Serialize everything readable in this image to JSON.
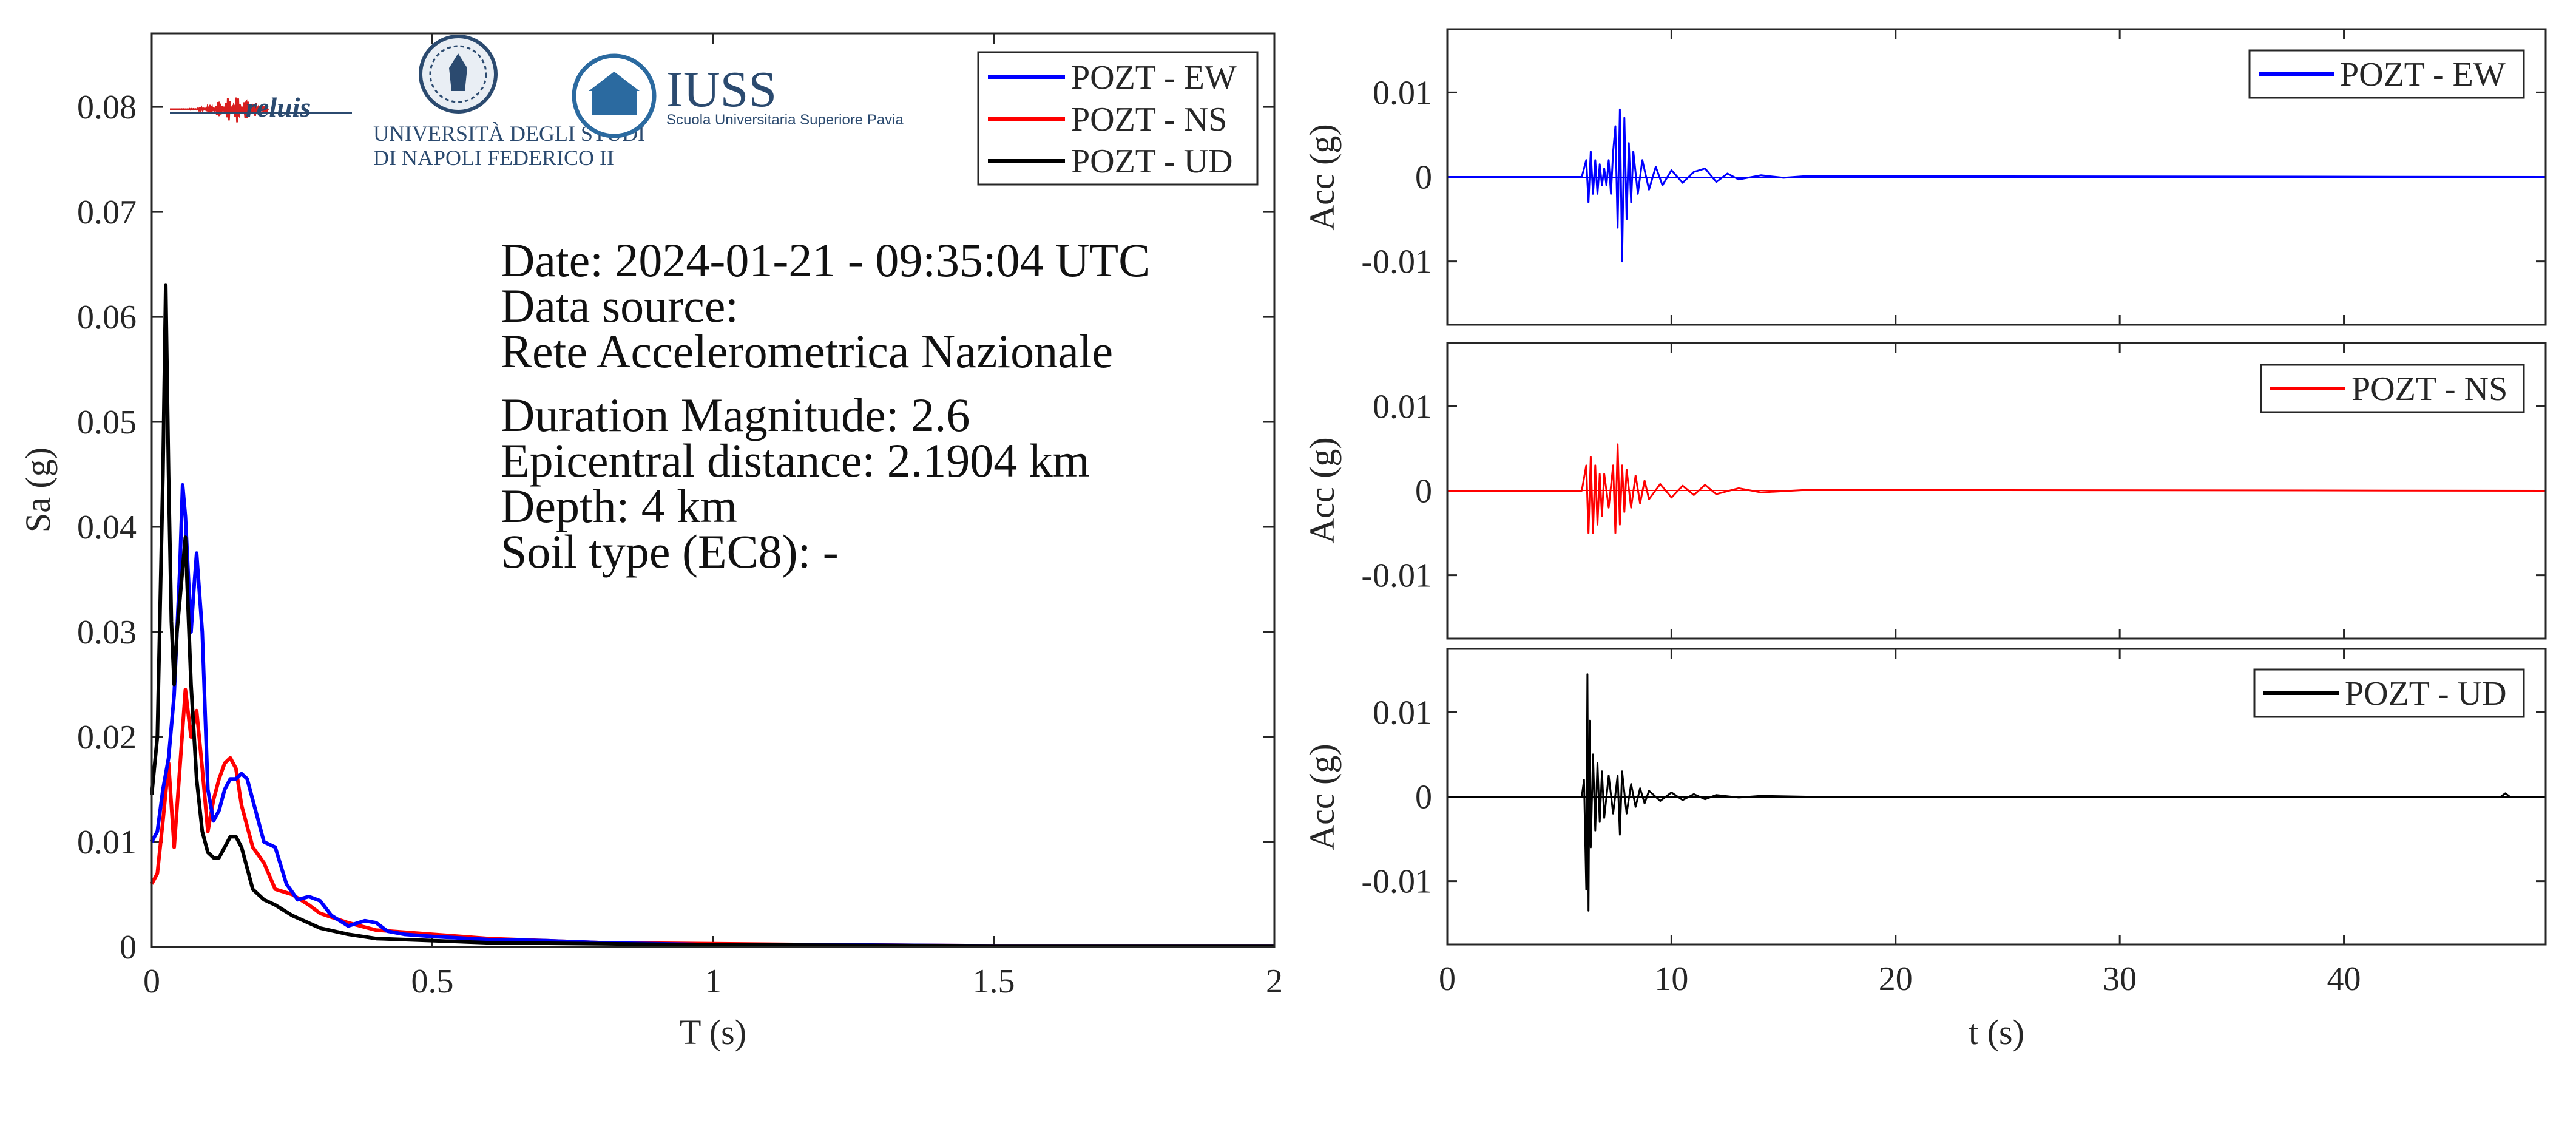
{
  "info": {
    "date": "Date: 2024-01-21 - 09:35:04 UTC",
    "source_label": "Data source:",
    "source": "Rete Accelerometrica Nazionale",
    "magnitude": "Duration Magnitude: 2.6",
    "distance": "Epicentral distance: 2.1904 km",
    "depth": "Depth: 4 km",
    "soil": "Soil type (EC8): -"
  },
  "logos": {
    "reluis": "reluis",
    "unina_line1": "UNIVERSITÀ DEGLI STUDI",
    "unina_line2": "DI NAPOLI FEDERICO II",
    "iuss_title": "IUSS",
    "iuss_subtitle": "Scuola Universitaria Superiore Pavia"
  },
  "colors": {
    "EW": "#0000ff",
    "NS": "#ff0000",
    "UD": "#000000"
  },
  "chart_data": [
    {
      "type": "line",
      "name": "spectrum",
      "xlabel": "T (s)",
      "ylabel": "Sa (g)",
      "xlim": [
        0,
        2
      ],
      "ylim": [
        0,
        0.087
      ],
      "xticks": [
        0,
        0.5,
        1,
        1.5,
        2
      ],
      "xtick_labels": [
        "0",
        "0.5",
        "1",
        "1.5",
        "2"
      ],
      "yticks": [
        0,
        0.01,
        0.02,
        0.03,
        0.04,
        0.05,
        0.06,
        0.07,
        0.08
      ],
      "ytick_labels": [
        "0",
        "0.01",
        "0.02",
        "0.03",
        "0.04",
        "0.05",
        "0.06",
        "0.07",
        "0.08"
      ],
      "legend": "top-right",
      "series": [
        {
          "name": "POZT - EW",
          "color": "#0000ff",
          "x": [
            0,
            0.01,
            0.02,
            0.03,
            0.04,
            0.05,
            0.055,
            0.06,
            0.07,
            0.075,
            0.08,
            0.09,
            0.1,
            0.11,
            0.12,
            0.13,
            0.14,
            0.15,
            0.16,
            0.17,
            0.18,
            0.2,
            0.22,
            0.24,
            0.26,
            0.28,
            0.3,
            0.32,
            0.35,
            0.38,
            0.4,
            0.42,
            0.45,
            0.5,
            0.6,
            0.7,
            0.8,
            1.0,
            1.2,
            1.5,
            1.8,
            2.0
          ],
          "y": [
            0.01,
            0.011,
            0.015,
            0.018,
            0.024,
            0.036,
            0.044,
            0.041,
            0.03,
            0.034,
            0.0375,
            0.03,
            0.015,
            0.012,
            0.013,
            0.015,
            0.016,
            0.016,
            0.0165,
            0.016,
            0.014,
            0.01,
            0.0095,
            0.006,
            0.0045,
            0.0048,
            0.0044,
            0.003,
            0.002,
            0.0025,
            0.0023,
            0.0015,
            0.0012,
            0.001,
            0.0007,
            0.0006,
            0.0004,
            0.0002,
            0.0002,
            0.0001,
            0.0001,
            0.0001
          ]
        },
        {
          "name": "POZT - NS",
          "color": "#ff0000",
          "x": [
            0,
            0.01,
            0.02,
            0.03,
            0.04,
            0.05,
            0.06,
            0.07,
            0.08,
            0.09,
            0.1,
            0.11,
            0.12,
            0.13,
            0.14,
            0.15,
            0.16,
            0.18,
            0.2,
            0.22,
            0.25,
            0.28,
            0.3,
            0.35,
            0.4,
            0.5,
            0.6,
            0.7,
            0.8,
            1.0,
            1.2,
            1.5,
            1.8,
            2.0
          ],
          "y": [
            0.006,
            0.007,
            0.012,
            0.0175,
            0.0095,
            0.017,
            0.0245,
            0.02,
            0.0225,
            0.017,
            0.011,
            0.014,
            0.016,
            0.0175,
            0.018,
            0.017,
            0.0135,
            0.0095,
            0.008,
            0.0055,
            0.005,
            0.004,
            0.0032,
            0.0023,
            0.0016,
            0.0012,
            0.0008,
            0.0006,
            0.0004,
            0.0003,
            0.0002,
            0.0001,
            0.0001,
            0.0001
          ]
        },
        {
          "name": "POZT - UD",
          "color": "#000000",
          "x": [
            0,
            0.01,
            0.02,
            0.025,
            0.03,
            0.035,
            0.04,
            0.045,
            0.05,
            0.06,
            0.07,
            0.08,
            0.09,
            0.1,
            0.11,
            0.12,
            0.13,
            0.14,
            0.15,
            0.16,
            0.17,
            0.18,
            0.2,
            0.22,
            0.25,
            0.3,
            0.35,
            0.4,
            0.5,
            0.6,
            0.8,
            1.0,
            1.5,
            2.0
          ],
          "y": [
            0.0145,
            0.02,
            0.045,
            0.063,
            0.045,
            0.031,
            0.025,
            0.03,
            0.033,
            0.039,
            0.025,
            0.016,
            0.011,
            0.009,
            0.0085,
            0.0085,
            0.0095,
            0.0105,
            0.0105,
            0.0095,
            0.0075,
            0.0055,
            0.0045,
            0.004,
            0.003,
            0.0018,
            0.0012,
            0.0008,
            0.0006,
            0.0004,
            0.0003,
            0.0002,
            0.0001,
            0.0001
          ]
        }
      ]
    },
    {
      "type": "line",
      "name": "acc-EW",
      "xlabel": "",
      "ylabel": "Acc (g)",
      "xlim": [
        0,
        49
      ],
      "ylim": [
        -0.0175,
        0.0175
      ],
      "yticks": [
        0.01,
        0,
        -0.01
      ],
      "ytick_labels": [
        "0.01",
        "0",
        "-0.01"
      ],
      "xticks": [
        0,
        10,
        20,
        30,
        40
      ],
      "legend": "top-right",
      "series": [
        {
          "name": "POZT - EW",
          "color": "#0000ff",
          "t": [
            0,
            6.0,
            6.2,
            6.3,
            6.4,
            6.5,
            6.6,
            6.7,
            6.8,
            6.9,
            7.0,
            7.1,
            7.2,
            7.3,
            7.4,
            7.5,
            7.6,
            7.7,
            7.8,
            7.9,
            8.0,
            8.1,
            8.2,
            8.3,
            8.5,
            8.7,
            9.0,
            9.3,
            9.6,
            10.0,
            10.5,
            11.0,
            11.5,
            12.0,
            12.5,
            13.0,
            14.0,
            15.0,
            16.0,
            49.0
          ],
          "y": [
            0,
            0,
            0.002,
            -0.003,
            0.003,
            -0.002,
            0.002,
            -0.002,
            0.0015,
            -0.001,
            0.001,
            -0.001,
            0.002,
            -0.002,
            0.003,
            0.006,
            -0.006,
            0.008,
            -0.01,
            0.007,
            -0.005,
            0.004,
            -0.003,
            0.003,
            -0.002,
            0.002,
            -0.0015,
            0.0012,
            -0.001,
            0.0008,
            -0.0007,
            0.0006,
            0.001,
            -0.0006,
            0.0004,
            -0.0003,
            0.0002,
            -0.0001,
            0.0001,
            0
          ]
        }
      ]
    },
    {
      "type": "line",
      "name": "acc-NS",
      "xlabel": "",
      "ylabel": "Acc (g)",
      "xlim": [
        0,
        49
      ],
      "ylim": [
        -0.0175,
        0.0175
      ],
      "yticks": [
        0.01,
        0,
        -0.01
      ],
      "ytick_labels": [
        "0.01",
        "0",
        "-0.01"
      ],
      "xticks": [
        0,
        10,
        20,
        30,
        40
      ],
      "legend": "top-right",
      "series": [
        {
          "name": "POZT - NS",
          "color": "#ff0000",
          "t": [
            0,
            6.0,
            6.2,
            6.3,
            6.4,
            6.5,
            6.6,
            6.7,
            6.8,
            6.9,
            7.0,
            7.2,
            7.4,
            7.5,
            7.6,
            7.7,
            7.8,
            7.9,
            8.0,
            8.2,
            8.4,
            8.6,
            8.8,
            9.0,
            9.5,
            10.0,
            10.5,
            11.0,
            11.5,
            12.0,
            13.0,
            14.0,
            16.0,
            49.0
          ],
          "y": [
            0,
            0,
            0.003,
            -0.005,
            0.004,
            -0.005,
            0.003,
            -0.004,
            0.002,
            -0.003,
            0.002,
            -0.002,
            0.003,
            -0.005,
            0.0055,
            -0.004,
            0.003,
            -0.0025,
            0.0025,
            -0.002,
            0.0018,
            -0.0015,
            0.0012,
            -0.001,
            0.0008,
            -0.0008,
            0.0006,
            -0.0005,
            0.0007,
            -0.0004,
            0.0003,
            -0.0002,
            0.0001,
            0
          ]
        }
      ]
    },
    {
      "type": "line",
      "name": "acc-UD",
      "xlabel": "t (s)",
      "ylabel": "Acc (g)",
      "xlim": [
        0,
        49
      ],
      "ylim": [
        -0.0175,
        0.0175
      ],
      "yticks": [
        0.01,
        0,
        -0.01
      ],
      "ytick_labels": [
        "0.01",
        "0",
        "-0.01"
      ],
      "xticks": [
        0,
        10,
        20,
        30,
        40
      ],
      "xtick_labels": [
        "0",
        "10",
        "20",
        "30",
        "40"
      ],
      "legend": "top-right",
      "series": [
        {
          "name": "POZT - UD",
          "color": "#000000",
          "t": [
            0,
            6.0,
            6.1,
            6.2,
            6.25,
            6.3,
            6.35,
            6.4,
            6.5,
            6.6,
            6.7,
            6.8,
            6.9,
            7.0,
            7.2,
            7.4,
            7.6,
            7.7,
            7.8,
            8.0,
            8.2,
            8.4,
            8.6,
            8.8,
            9.0,
            9.5,
            10.0,
            10.5,
            11.0,
            11.5,
            12.0,
            13.0,
            14.0,
            16.0,
            47.0,
            47.2,
            47.4,
            49.0
          ],
          "y": [
            0,
            0,
            0.002,
            -0.011,
            0.0145,
            -0.0135,
            0.009,
            -0.006,
            0.005,
            -0.004,
            0.004,
            -0.003,
            0.003,
            -0.0025,
            0.0025,
            -0.002,
            0.0025,
            -0.0045,
            0.003,
            -0.002,
            0.0015,
            -0.0012,
            0.001,
            -0.0008,
            0.0007,
            -0.0005,
            0.0005,
            -0.0004,
            0.0003,
            -0.0003,
            0.0002,
            -0.0001,
            0.0001,
            0,
            0,
            0.0004,
            0,
            0
          ]
        }
      ]
    }
  ]
}
